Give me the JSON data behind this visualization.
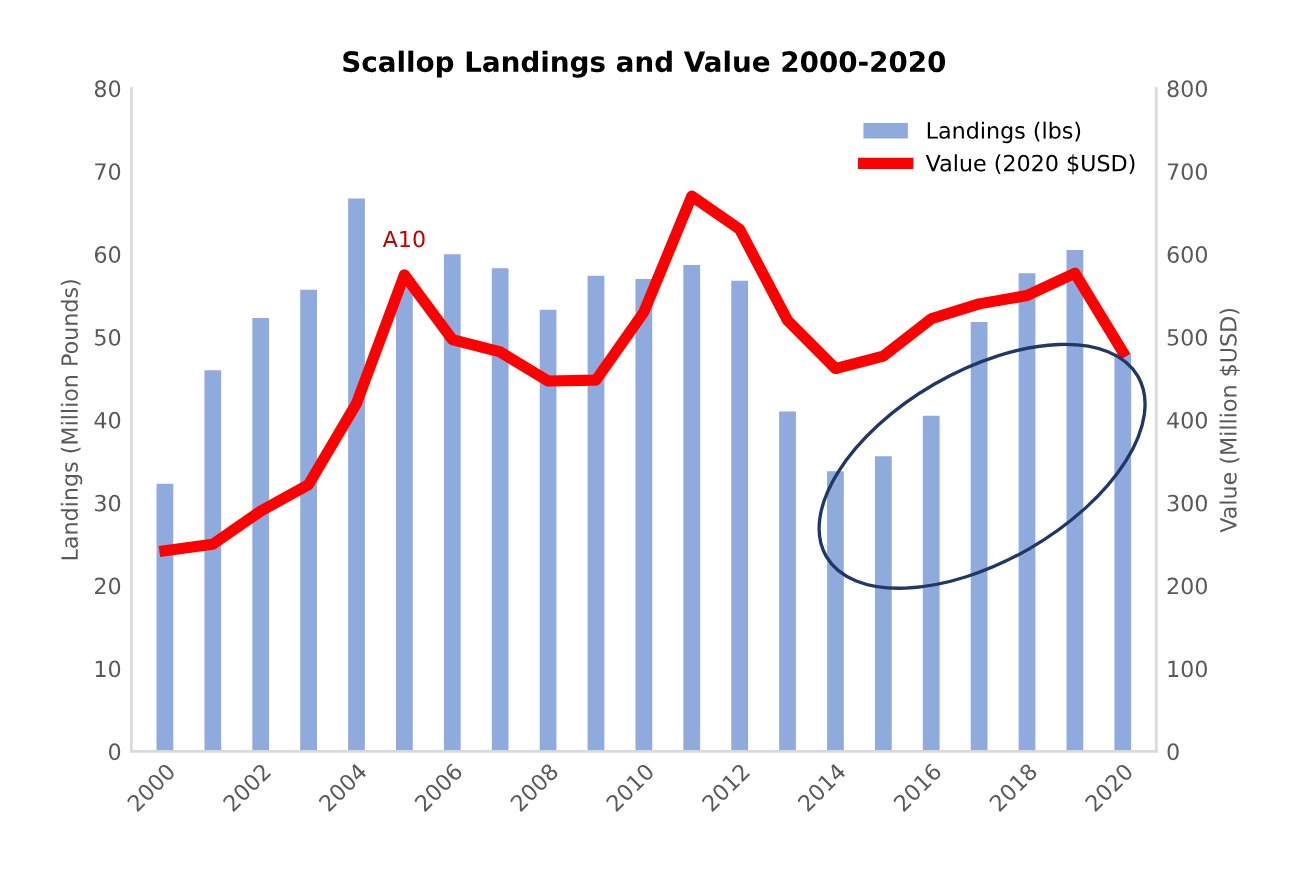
{
  "chart_data": {
    "type": "bar",
    "title": "Scallop Landings and Value 2000-2020",
    "ylabel": "Landings (Million Pounds)",
    "y2label": "Value (Million $USD)",
    "categories": [
      "2000",
      null,
      "2002",
      null,
      "2004",
      null,
      "2006",
      null,
      "2008",
      null,
      "2010",
      null,
      "2012",
      null,
      "2014",
      null,
      "2016",
      null,
      "2018",
      null,
      "2020"
    ],
    "series": [
      {
        "name": "Landings (lbs)",
        "color": "#8faadc",
        "values": [
          32.3,
          46,
          52.3,
          55.7,
          66.7,
          56,
          60,
          58.3,
          53.3,
          57.4,
          57,
          58.7,
          56.8,
          41,
          33.8,
          35.6,
          40.5,
          51.8,
          57.7,
          60.5,
          48
        ]
      },
      {
        "name": "Value (2020 $USD)",
        "type": "line",
        "axis": "y2",
        "color": "#ff0000",
        "values": [
          242,
          250,
          290,
          322,
          420,
          575,
          497,
          482,
          447,
          448,
          530,
          670,
          630,
          520,
          462,
          477,
          522,
          540,
          550,
          577,
          482
        ]
      }
    ],
    "ylim": [
      0,
      80
    ],
    "yticks": [
      0,
      10,
      20,
      30,
      40,
      50,
      60,
      70,
      80
    ],
    "y2lim": [
      0,
      800
    ],
    "y2ticks": [
      0,
      100,
      200,
      300,
      400,
      500,
      600,
      700,
      800
    ],
    "annotations": [
      "A10"
    ],
    "grid": false,
    "legend": "top right",
    "marker": "none",
    "line_style": "solid"
  }
}
